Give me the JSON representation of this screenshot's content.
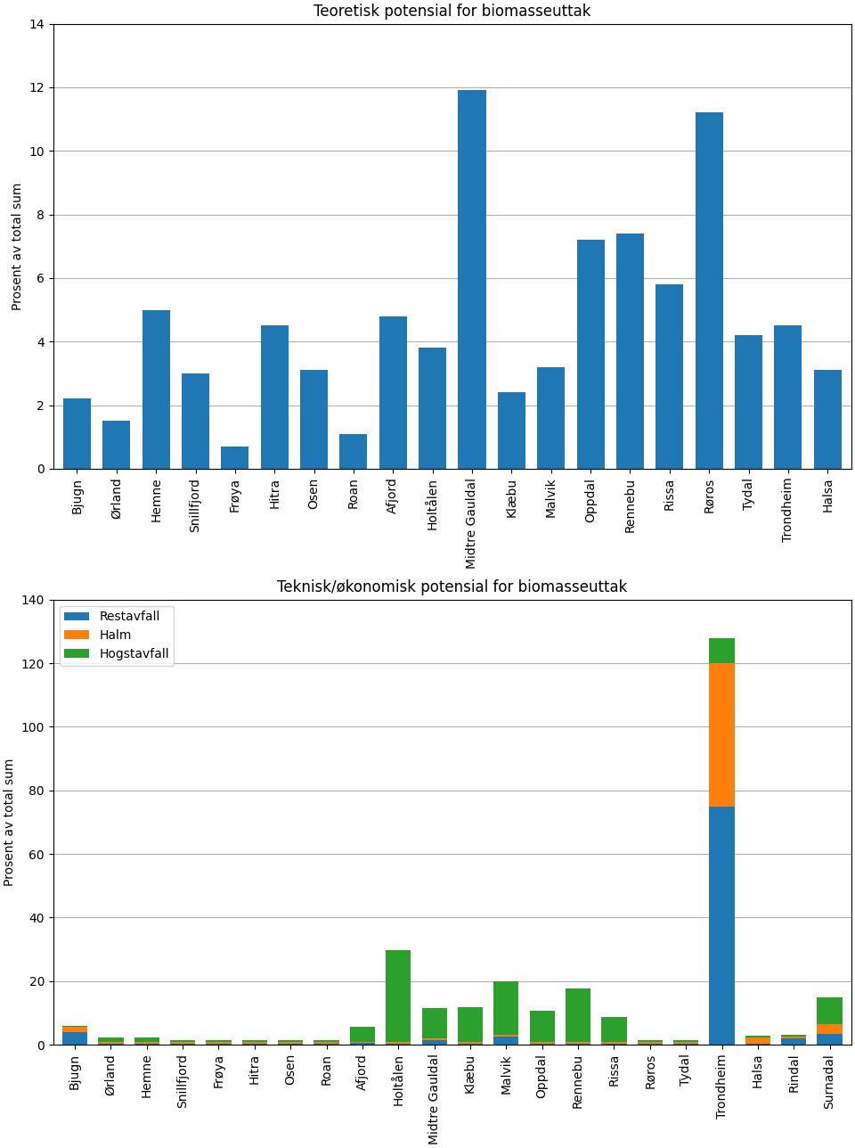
{
  "chart_data": [
    {
      "type": "bar",
      "title": "Teoretisk potensial for biomasseuttak",
      "ylabel": "Prosent av total sum",
      "categories": [
        "Bjugn",
        "Ørland",
        "Hemne",
        "Snillfjord",
        "Frøya",
        "Hitra",
        "Osen",
        "Roan",
        "Afjord",
        "Holtålen",
        "Midtre Gauldal",
        "Klæbu",
        "Malvik",
        "Oppdal",
        "Rennebu",
        "Rissa",
        "Røros",
        "Tydal",
        "Trondheim",
        "Halsa"
      ],
      "values": [
        2.2,
        1.5,
        5.0,
        3.0,
        0.7,
        4.5,
        3.1,
        1.1,
        4.8,
        3.8,
        11.9,
        2.4,
        3.2,
        7.2,
        7.4,
        5.8,
        11.2,
        4.2,
        4.5,
        3.1
      ],
      "ylim": [
        0,
        14
      ],
      "yticks": [
        0,
        2,
        4,
        6,
        8,
        10,
        12,
        14
      ],
      "grid": true
    },
    {
      "type": "bar",
      "title": "Teknisk/økonomisk potensial for biomasseuttak",
      "ylabel": "Prosent av total sum",
      "stacked": true,
      "categories": [
        "Bjugn",
        "Ørland",
        "Hemne",
        "Snillfjord",
        "Frøya",
        "Hitra",
        "Osen",
        "Roan",
        "Afjord",
        "Holtålen",
        "Midtre Gauldal",
        "Klæbu",
        "Malvik",
        "Oppdal",
        "Rennebu",
        "Rissa",
        "Røros",
        "Tydal",
        "Trondheim",
        "Halsa",
        "Rindal",
        "Surnadal"
      ],
      "series": [
        {
          "name": "Restavfall",
          "values": [
            4,
            0.3,
            0.3,
            0.3,
            0.3,
            0.3,
            0.3,
            0.3,
            0.5,
            0.3,
            1.5,
            0.3,
            2.5,
            0.3,
            0.3,
            0.3,
            0.3,
            0.3,
            75,
            0.3,
            2.0,
            3.5
          ]
        },
        {
          "name": "Halm",
          "values": [
            1.5,
            0.5,
            0.5,
            0.5,
            0.5,
            0.5,
            0.5,
            0.5,
            0.5,
            0.5,
            0.5,
            0.5,
            0.5,
            0.5,
            0.5,
            0.5,
            0.5,
            0.5,
            45,
            2.0,
            0.5,
            3.0
          ]
        },
        {
          "name": "Hogstavfall",
          "values": [
            0.5,
            1.5,
            1.5,
            0.5,
            0.5,
            0.5,
            0.5,
            0.5,
            4.5,
            29,
            9.5,
            11,
            17,
            10,
            17,
            8,
            0.5,
            0.5,
            8,
            0.5,
            0.5,
            8.5
          ]
        }
      ],
      "ylim": [
        0,
        140
      ],
      "yticks": [
        0,
        20,
        40,
        60,
        80,
        100,
        120,
        140
      ],
      "grid": true,
      "legend": "upper left"
    }
  ]
}
